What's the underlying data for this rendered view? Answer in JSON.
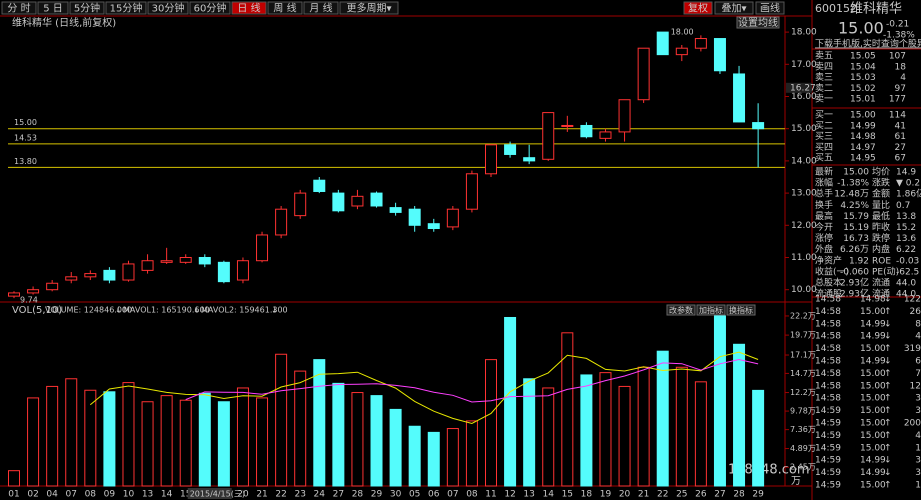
{
  "toolbar": {
    "tabs": [
      "分 时",
      "5 日",
      "5分钟",
      "15分钟",
      "30分钟",
      "60分钟",
      "日 线",
      "周 线",
      "月 线",
      "更多周期▾"
    ],
    "active": 6,
    "right_buttons": [
      "复权",
      "叠加▾",
      "画线"
    ]
  },
  "chart_data": [
    {
      "type": "candlestick",
      "title": "维科精华 (日线,前复权)",
      "button": "设置均线",
      "categories": [
        "01",
        "02",
        "04",
        "07",
        "08",
        "09",
        "10",
        "13",
        "14",
        "15",
        "16",
        "17",
        "20",
        "21",
        "22",
        "23",
        "24",
        "27",
        "28",
        "29",
        "30",
        "05",
        "06",
        "07",
        "08",
        "11",
        "12",
        "13",
        "14",
        "15",
        "18",
        "19",
        "20",
        "21",
        "22",
        "25",
        "26",
        "27",
        "28",
        "29"
      ],
      "crosshair_date": "2015/4/15(三)",
      "open": [
        9.8,
        9.9,
        10.0,
        10.3,
        10.4,
        10.6,
        10.3,
        10.6,
        10.85,
        10.85,
        11.0,
        10.85,
        10.3,
        10.9,
        11.7,
        12.3,
        13.4,
        13.0,
        12.6,
        13.0,
        12.55,
        12.5,
        12.05,
        11.95,
        12.5,
        13.6,
        14.5,
        14.1,
        14.05,
        15.1,
        15.1,
        14.7,
        14.9,
        15.9,
        18.0,
        17.3,
        17.5,
        17.8,
        16.7,
        15.19
      ],
      "high": [
        9.95,
        10.1,
        10.3,
        10.55,
        10.6,
        10.7,
        10.9,
        11.1,
        11.3,
        11.1,
        11.1,
        10.9,
        11.0,
        11.8,
        12.6,
        13.1,
        13.5,
        13.1,
        13.1,
        13.05,
        12.7,
        12.6,
        12.2,
        12.6,
        13.7,
        14.5,
        14.6,
        14.5,
        15.5,
        15.4,
        15.2,
        15.0,
        15.9,
        17.5,
        18.0,
        17.6,
        17.9,
        17.8,
        16.95,
        15.79
      ],
      "low": [
        9.74,
        9.85,
        9.95,
        10.2,
        10.3,
        10.2,
        10.25,
        10.5,
        10.8,
        10.8,
        10.7,
        10.2,
        10.2,
        10.85,
        11.6,
        12.2,
        13.0,
        12.4,
        12.5,
        12.55,
        12.3,
        11.8,
        11.8,
        11.85,
        12.4,
        13.5,
        14.1,
        13.9,
        14.0,
        14.9,
        14.7,
        14.6,
        14.6,
        15.8,
        17.3,
        17.1,
        17.4,
        16.7,
        15.2,
        13.8
      ],
      "close": [
        9.9,
        10.0,
        10.2,
        10.4,
        10.5,
        10.3,
        10.8,
        10.9,
        10.9,
        11.0,
        10.8,
        10.25,
        10.9,
        11.7,
        12.5,
        13.0,
        13.05,
        12.45,
        12.9,
        12.6,
        12.4,
        12.0,
        11.9,
        12.5,
        13.6,
        14.5,
        14.2,
        14.0,
        15.5,
        15.1,
        14.75,
        14.9,
        15.9,
        17.5,
        17.3,
        17.5,
        17.8,
        16.8,
        15.21,
        15.0
      ],
      "up_color": "#ff3232",
      "down_color": "#54fcfc",
      "ylim": [
        9.68,
        18.5
      ],
      "yticks": [
        {
          "value": 18,
          "label": "18.00"
        },
        {
          "value": 17,
          "label": "17.00"
        },
        {
          "value": 16,
          "label": "16.00"
        },
        {
          "value": 15,
          "label": "15.00"
        },
        {
          "value": 14,
          "label": "14.00"
        },
        {
          "value": 13,
          "label": "13.00"
        },
        {
          "value": 12,
          "label": "12.00"
        },
        {
          "value": 11,
          "label": "11.00"
        },
        {
          "value": 10,
          "label": "10.00"
        }
      ],
      "grid": false,
      "levels": [
        {
          "value": 15,
          "label": "15.00"
        },
        {
          "value": 14.53,
          "label": "14.53"
        },
        {
          "value": 13.8,
          "label": "13.80"
        }
      ],
      "level_color": "#d8c400",
      "high_label": {
        "value": 18,
        "label": "18.00"
      },
      "low_label": {
        "value": 9.74,
        "label": "9.74"
      },
      "axis_marker": {
        "value": 16.27,
        "label": "16.27"
      }
    },
    {
      "type": "bar",
      "title": "VOL(5,10)",
      "volume_label": "VOLUME: 124846.000",
      "buttons": [
        "改参数",
        "加指标",
        "换指标"
      ],
      "arrow": "↓",
      "unit": "万",
      "watermark": "178448.com",
      "values": [
        20000,
        115000,
        130000,
        140000,
        125000,
        123000,
        135000,
        110000,
        118000,
        112000,
        121000,
        110000,
        128000,
        115000,
        172000,
        150000,
        165000,
        134000,
        122000,
        118000,
        100000,
        78000,
        70000,
        75000,
        85000,
        165000,
        220000,
        140000,
        128000,
        200000,
        145000,
        148000,
        130000,
        155000,
        176000,
        155000,
        136000,
        222000,
        185000,
        124846
      ],
      "ylim": [
        0,
        235000
      ],
      "yticks": [
        {
          "value": 222000,
          "label": "22.2万"
        },
        {
          "value": 197000,
          "label": "19.7万"
        },
        {
          "value": 171000,
          "label": "17.1万"
        },
        {
          "value": 147000,
          "label": "14.7万"
        },
        {
          "value": 122000,
          "label": "12.2万"
        },
        {
          "value": 97800,
          "label": "9.78万"
        },
        {
          "value": 73600,
          "label": "7.36万"
        },
        {
          "value": 48900,
          "label": "4.89万"
        },
        {
          "value": 24500,
          "label": "2.45万"
        }
      ],
      "series": [
        {
          "name": "MAVOL1: 165190.600",
          "color": "#e8e800",
          "values": [
            null,
            null,
            null,
            null,
            106000,
            126600,
            130600,
            126600,
            122200,
            119600,
            119200,
            114200,
            117800,
            117200,
            129200,
            135000,
            146000,
            146800,
            148600,
            137800,
            127800,
            110400,
            97600,
            88200,
            81600,
            94600,
            123000,
            137000,
            147600,
            170600,
            166600,
            152200,
            150200,
            155600,
            150800,
            152800,
            150400,
            168800,
            174800,
            165190.6
          ]
        },
        {
          "name": "MAVOL2: 159461.300",
          "color": "#ff40ff",
          "values": [
            null,
            null,
            null,
            null,
            null,
            null,
            null,
            null,
            null,
            112800,
            122900,
            122400,
            122200,
            119700,
            124400,
            127100,
            130100,
            132500,
            132900,
            133500,
            131400,
            128200,
            122400,
            118400,
            109700,
            111200,
            116700,
            117300,
            117900,
            126100,
            130600,
            137600,
            143600,
            151600,
            160700,
            159700,
            151300,
            159500,
            165200,
            159461.3
          ]
        }
      ]
    }
  ],
  "quote": {
    "code": "600152",
    "name": "维科精华",
    "price": "15.00",
    "change": "-0.21",
    "pct": "-1.38%",
    "banner": "下载手机版,实时查询个股异动"
  },
  "order_book": {
    "sell": [
      [
        "卖五",
        "15.05",
        "107"
      ],
      [
        "卖四",
        "15.04",
        "18"
      ],
      [
        "卖三",
        "15.03",
        "4"
      ],
      [
        "卖二",
        "15.02",
        "97"
      ],
      [
        "卖一",
        "15.01",
        "177"
      ]
    ],
    "buy": [
      [
        "买一",
        "15.00",
        "114"
      ],
      [
        "买二",
        "14.99",
        "41"
      ],
      [
        "买三",
        "14.98",
        "61"
      ],
      [
        "买四",
        "14.97",
        "27"
      ],
      [
        "买五",
        "14.95",
        "67"
      ]
    ],
    "price_color": "#00e600"
  },
  "stats": [
    {
      "l1": "最新",
      "v1": "15.00",
      "c1": "#00e600",
      "l2": "均价",
      "v2": "14.9",
      "c2": "#00e600"
    },
    {
      "l1": "涨幅",
      "v1": "-1.38%",
      "c1": "#00e600",
      "l2": "涨跌",
      "v2": "▼ 0.2",
      "c2": "#00e600"
    },
    {
      "l1": "总手",
      "v1": "12.48万",
      "c1": "#ffff00",
      "l2": "金额",
      "v2": "1.86亿",
      "c2": "#ffff00"
    },
    {
      "l1": "换手",
      "v1": "4.25%",
      "c1": "#ffff00",
      "l2": "量比",
      "v2": "0.7",
      "c2": "#ffff00"
    },
    {
      "l1": "最高",
      "v1": "15.79",
      "c1": "#ff3232",
      "l2": "最低",
      "v2": "13.8",
      "c2": "#00e600"
    },
    {
      "l1": "今开",
      "v1": "15.19",
      "c1": "#00e600",
      "l2": "昨收",
      "v2": "15.2",
      "c2": "#e0e0e0"
    },
    {
      "l1": "涨停",
      "v1": "16.73",
      "c1": "#ff3232",
      "l2": "跌停",
      "v2": "13.6",
      "c2": "#00e600"
    },
    {
      "l1": "外盘",
      "v1": "6.26万",
      "c1": "#ff3232",
      "l2": "内盘",
      "v2": "6.22",
      "c2": "#00e600"
    },
    {
      "l1": "净资产",
      "v1": "1.92",
      "c1": "#e0e0e0",
      "l2": "ROE",
      "v2": "-0.03",
      "c2": "#e0e0e0"
    },
    {
      "l1": "收益(一)",
      "v1": "-0.060",
      "c1": "#e0e0e0",
      "l2": "PE(动)",
      "v2": "-62.5",
      "c2": "#e0e0e0"
    },
    {
      "l1": "总股本",
      "v1": "2.93亿",
      "c1": "#e0e0e0",
      "l2": "流通",
      "v2": "44.0",
      "c2": "#e0e0e0"
    },
    {
      "l1": "流通股",
      "v1": "2.93亿",
      "c1": "#e0e0e0",
      "l2": "流通",
      "v2": "44.0",
      "c2": "#e0e0e0"
    }
  ],
  "trades": [
    [
      "14:58",
      "14.98",
      "↓",
      "122"
    ],
    [
      "14:58",
      "15.00",
      "↑",
      "26"
    ],
    [
      "14:58",
      "14.99",
      "↓",
      "8"
    ],
    [
      "14:58",
      "14.99",
      "↓",
      "4"
    ],
    [
      "14:58",
      "15.00",
      "↑",
      "319"
    ],
    [
      "14:58",
      "14.99",
      "↓",
      "6"
    ],
    [
      "14:58",
      "15.00",
      "↑",
      "7"
    ],
    [
      "14:58",
      "15.00",
      "↑",
      "12"
    ],
    [
      "14:58",
      "15.00",
      "↑",
      "3"
    ],
    [
      "14:59",
      "15.00",
      "↑",
      "3"
    ],
    [
      "14:59",
      "15.00",
      "↑",
      "200"
    ],
    [
      "14:59",
      "15.00",
      "↑",
      "4"
    ],
    [
      "14:59",
      "15.00",
      "↑",
      "1"
    ],
    [
      "14:59",
      "14.99",
      "↓",
      "3"
    ],
    [
      "14:59",
      "14.99",
      "↓",
      "3"
    ],
    [
      "14:59",
      "15.00",
      "↑",
      "1"
    ]
  ]
}
